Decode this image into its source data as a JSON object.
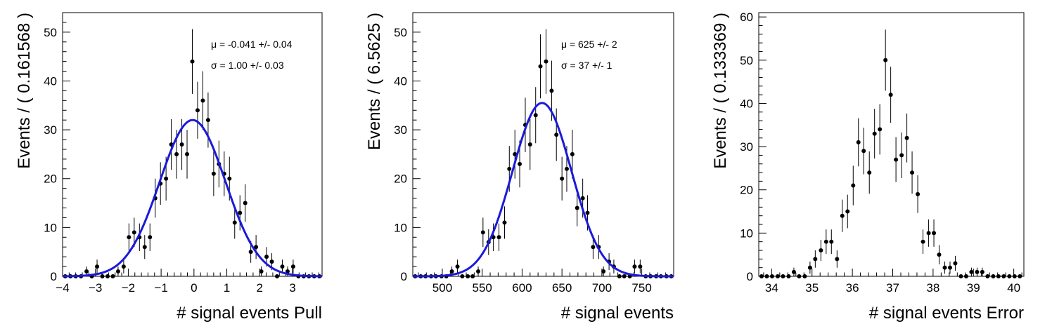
{
  "chart_data": [
    {
      "type": "scatter",
      "xlabel": "# signal events Pull",
      "ylabel": "Events / ( 0.161568 )",
      "xlim": [
        -4.0,
        3.9
      ],
      "ylim": [
        0,
        54
      ],
      "xticks": [
        -4,
        -3,
        -2,
        -1,
        0,
        1,
        2,
        3
      ],
      "yticks": [
        0,
        10,
        20,
        30,
        40,
        50
      ],
      "annotations": [
        "μ = -0.041 +/- 0.04",
        "σ =  1.00 +/- 0.03"
      ],
      "fit": {
        "mean": -0.041,
        "sigma": 1.0,
        "peak": 32,
        "color": "#1a1adb"
      },
      "x": [
        -3.92,
        -3.76,
        -3.6,
        -3.44,
        -3.27,
        -3.11,
        -2.95,
        -2.79,
        -2.63,
        -2.47,
        -2.31,
        -2.14,
        -1.98,
        -1.82,
        -1.66,
        -1.5,
        -1.34,
        -1.18,
        -1.02,
        -0.85,
        -0.69,
        -0.53,
        -0.37,
        -0.21,
        -0.05,
        0.11,
        0.27,
        0.43,
        0.6,
        0.76,
        0.92,
        1.08,
        1.24,
        1.4,
        1.56,
        1.73,
        1.89,
        2.05,
        2.21,
        2.37,
        2.53,
        2.69,
        2.85,
        3.02,
        3.18,
        3.34,
        3.5,
        3.66,
        3.82
      ],
      "y": [
        0,
        0,
        0,
        0,
        1,
        0,
        2,
        0,
        0,
        0,
        1,
        2,
        8,
        9,
        8,
        6,
        8,
        16,
        19,
        20,
        27,
        25,
        27,
        25,
        44,
        34,
        36,
        32,
        21,
        23,
        21,
        20,
        11,
        13,
        15,
        5,
        6,
        1,
        4,
        3,
        0,
        2,
        1,
        2,
        0,
        0,
        0,
        0,
        0
      ]
    },
    {
      "type": "scatter",
      "xlabel": "# signal events",
      "ylabel": "Events / ( 6.5625 )",
      "xlim": [
        463,
        790
      ],
      "ylim": [
        0,
        54
      ],
      "xticks": [
        500,
        550,
        600,
        650,
        700,
        750
      ],
      "yticks": [
        0,
        10,
        20,
        30,
        40,
        50
      ],
      "annotations": [
        "μ =  625 +/- 2",
        "σ =  37 +/- 1"
      ],
      "fit": {
        "mean": 625,
        "sigma": 37,
        "peak": 35.5,
        "color": "#1a1adb"
      },
      "x": [
        466,
        473,
        479,
        486,
        492,
        499,
        505,
        512,
        519,
        525,
        532,
        538,
        545,
        551,
        558,
        564,
        571,
        578,
        584,
        591,
        597,
        604,
        610,
        617,
        623,
        630,
        637,
        643,
        650,
        656,
        663,
        669,
        676,
        682,
        689,
        696,
        702,
        709,
        715,
        722,
        728,
        735,
        741,
        748,
        755,
        761,
        768,
        774,
        781,
        787
      ],
      "y": [
        0,
        0,
        0,
        0,
        0,
        0,
        0,
        1,
        2,
        0,
        0,
        0,
        1,
        9,
        7,
        8,
        8,
        11,
        22,
        25,
        23,
        31,
        27,
        33,
        43,
        44,
        38,
        29,
        20,
        22,
        25,
        14,
        16,
        13,
        6,
        6,
        1,
        3,
        2,
        0,
        0,
        0,
        2,
        2,
        0,
        0,
        0,
        0,
        0,
        0
      ]
    },
    {
      "type": "scatter",
      "xlabel": "# signal events Error",
      "ylabel": "Events / ( 0.133369 )",
      "xlim": [
        33.68,
        40.25
      ],
      "ylim": [
        0,
        61
      ],
      "xticks": [
        34,
        35,
        36,
        37,
        38,
        39,
        40
      ],
      "yticks": [
        0,
        10,
        20,
        30,
        40,
        50,
        60
      ],
      "annotations": [],
      "x": [
        33.75,
        33.88,
        34.01,
        34.15,
        34.28,
        34.42,
        34.55,
        34.68,
        34.82,
        34.95,
        35.08,
        35.22,
        35.35,
        35.48,
        35.62,
        35.75,
        35.88,
        36.02,
        36.15,
        36.28,
        36.42,
        36.55,
        36.68,
        36.82,
        36.95,
        37.08,
        37.22,
        37.35,
        37.48,
        37.62,
        37.75,
        37.89,
        38.02,
        38.15,
        38.29,
        38.42,
        38.55,
        38.69,
        38.82,
        38.95,
        39.09,
        39.22,
        39.35,
        39.49,
        39.62,
        39.75,
        39.89,
        40.02,
        40.15
      ],
      "y": [
        0,
        0,
        0,
        0,
        0,
        0,
        1,
        0,
        0,
        2,
        4,
        6,
        8,
        8,
        4,
        14,
        15,
        21,
        31,
        29,
        24,
        33,
        34,
        50,
        42,
        27,
        28,
        32,
        24,
        19,
        8,
        10,
        10,
        5,
        2,
        2,
        3,
        0,
        0,
        1,
        1,
        1,
        0,
        0,
        0,
        0,
        0,
        0,
        0
      ]
    }
  ]
}
